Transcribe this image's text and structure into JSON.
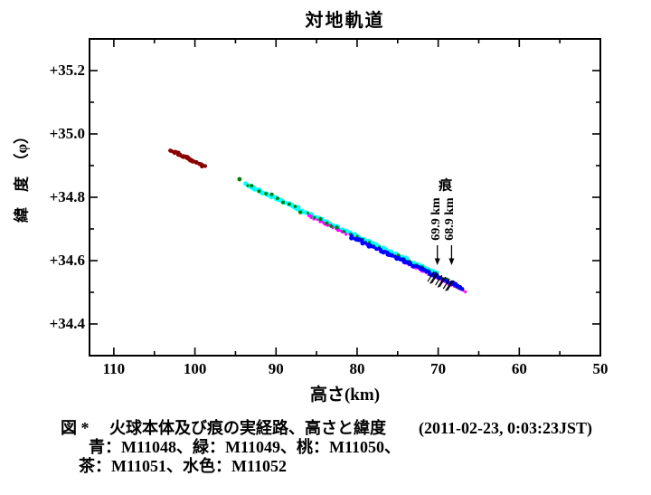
{
  "chart_data": {
    "type": "scatter",
    "title": "対地軌道",
    "xlabel": "高さ(km)",
    "ylabel": "緯　度　（φ）",
    "x_axis": {
      "min": 50,
      "max": 113,
      "reversed": true,
      "unit": "km",
      "major_ticks": [
        110,
        100,
        90,
        80,
        70,
        60,
        50
      ],
      "minor_ticks": [
        105,
        95,
        85,
        75,
        65,
        55
      ],
      "tick_labels": [
        "110",
        "100",
        "90",
        "80",
        "70",
        "60",
        "50"
      ]
    },
    "y_axis": {
      "min": 34.3,
      "max": 35.3,
      "major_ticks": [
        35.2,
        35.0,
        34.8,
        34.6,
        34.4
      ],
      "minor_ticks": [
        35.1,
        34.9,
        34.7,
        34.5
      ],
      "tick_labels": [
        "+35.2",
        "+35.0",
        "+34.8",
        "+34.6",
        "+34.4"
      ]
    },
    "series": [
      {
        "name": "M11051",
        "color_name": "茶",
        "color": "#8B0000",
        "waypoints": [
          [
            103.1,
            34.95
          ],
          [
            98.8,
            34.897
          ]
        ],
        "n": 48,
        "r": 2.1,
        "jitter": 0.9
      },
      {
        "name": "M11052",
        "color_name": "水色",
        "color": "#00FFFF",
        "waypoints": [
          [
            93.8,
            34.842
          ],
          [
            70.2,
            34.56
          ]
        ],
        "n": 160,
        "r": 2.3,
        "jitter": 1.0
      },
      {
        "name": "M11050",
        "color_name": "桃",
        "color": "#FF00FF",
        "waypoints": [
          [
            86.0,
            34.748
          ],
          [
            66.5,
            34.507
          ]
        ],
        "n": 95,
        "r": 1.5,
        "jitter": 0.9,
        "offset_y": 2
      },
      {
        "name": "M11049",
        "color_name": "緑",
        "color": "#008000",
        "waypoints": [
          [
            93.6,
            34.841
          ],
          [
            67.4,
            34.519
          ]
        ],
        "n": 36,
        "r": 1.8,
        "jitter": 2.0,
        "extra_points": [
          [
            94.5,
            34.857
          ]
        ],
        "extra_r": 2.4
      },
      {
        "name": "M11048",
        "color_name": "青",
        "color": "#0000FF",
        "waypoints": [
          [
            80.8,
            34.676
          ],
          [
            66.9,
            34.511
          ]
        ],
        "n": 70,
        "r": 2.2,
        "jitter": 1.2
      }
    ],
    "annotations": {
      "trail_label": "痕",
      "arrows": [
        {
          "at_km": 70.1,
          "label": "69.9 km"
        },
        {
          "at_km": 68.35,
          "label": "68.9 km"
        }
      ],
      "hatch_marks": {
        "km_from": 70.9,
        "km_to": 68.5,
        "count": 6
      }
    }
  },
  "caption": {
    "line1": "図 *　 火球本体及び痕の実経路、高さと緯度",
    "line1_date": "(2011-02-23, 0:03:23JST)",
    "line2": "青：M11048、緑：M11049、桃：M11050、",
    "line3": "茶：M11051、水色：M11052"
  }
}
